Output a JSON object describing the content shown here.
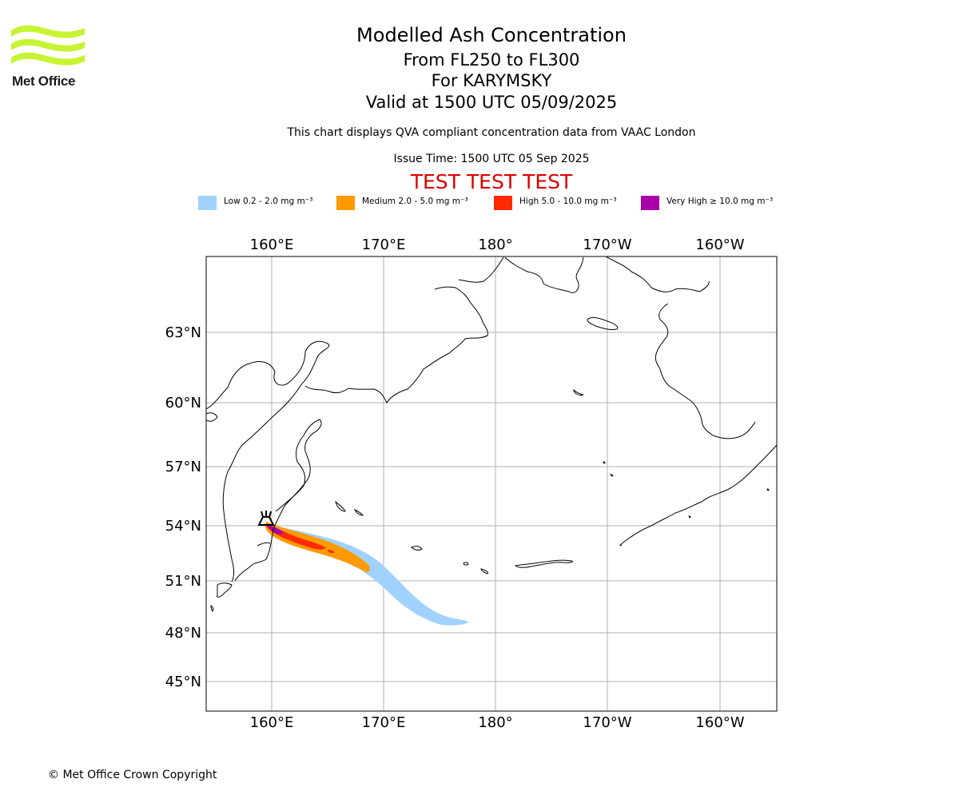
{
  "header": {
    "logo_text": "Met Office",
    "title": "Modelled Ash Concentration",
    "level_range": "From FL250 to FL300",
    "volcano": "For KARYMSKY",
    "valid_time": "Valid at 1500 UTC 05/09/2025",
    "compliance_note": "This chart displays QVA compliant concentration data from VAAC London",
    "issue_time": "Issue Time: 1500 UTC 05 Sep 2025",
    "test_banner": "TEST TEST TEST"
  },
  "legend": [
    {
      "label": "Low 0.2 - 2.0 mg m⁻³",
      "color": "#a0d2fd"
    },
    {
      "label": "Medium 2.0 - 5.0 mg m⁻³",
      "color": "#ff9a00"
    },
    {
      "label": "High 5.0 - 10.0 mg m⁻³",
      "color": "#ff2a00"
    },
    {
      "label": "Very High ≥ 10.0 mg m⁻³",
      "color": "#aa00aa"
    }
  ],
  "map": {
    "lon_ticks": [
      "160°E",
      "170°E",
      "180°",
      "170°W",
      "160°W"
    ],
    "lat_ticks": [
      "63°N",
      "60°N",
      "57°N",
      "54°N",
      "51°N",
      "48°N",
      "45°N"
    ],
    "volcano_symbol": "volcano-icon"
  },
  "footer": {
    "copyright": "© Met Office Crown Copyright"
  }
}
